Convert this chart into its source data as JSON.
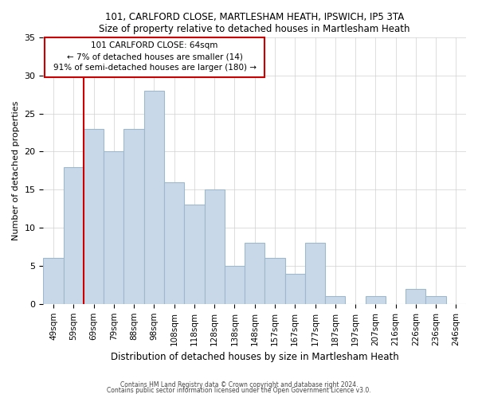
{
  "title": "101, CARLFORD CLOSE, MARTLESHAM HEATH, IPSWICH, IP5 3TA",
  "subtitle": "Size of property relative to detached houses in Martlesham Heath",
  "xlabel": "Distribution of detached houses by size in Martlesham Heath",
  "ylabel": "Number of detached properties",
  "bar_labels": [
    "49sqm",
    "59sqm",
    "69sqm",
    "79sqm",
    "88sqm",
    "98sqm",
    "108sqm",
    "118sqm",
    "128sqm",
    "138sqm",
    "148sqm",
    "157sqm",
    "167sqm",
    "177sqm",
    "187sqm",
    "197sqm",
    "207sqm",
    "216sqm",
    "226sqm",
    "236sqm",
    "246sqm"
  ],
  "bar_heights": [
    6,
    18,
    23,
    20,
    23,
    28,
    16,
    13,
    15,
    5,
    8,
    6,
    4,
    8,
    1,
    0,
    1,
    0,
    2,
    1,
    0
  ],
  "bar_color": "#c8d8e8",
  "bar_edge_color": "#a0b8cc",
  "vline_color": "#cc0000",
  "annotation_title": "101 CARLFORD CLOSE: 64sqm",
  "annotation_line1": "← 7% of detached houses are smaller (14)",
  "annotation_line2": "91% of semi-detached houses are larger (180) →",
  "annotation_box_color": "#ffffff",
  "annotation_box_edge": "#cc0000",
  "ylim": [
    0,
    35
  ],
  "yticks": [
    0,
    5,
    10,
    15,
    20,
    25,
    30,
    35
  ],
  "footer1": "Contains HM Land Registry data © Crown copyright and database right 2024.",
  "footer2": "Contains public sector information licensed under the Open Government Licence v3.0."
}
